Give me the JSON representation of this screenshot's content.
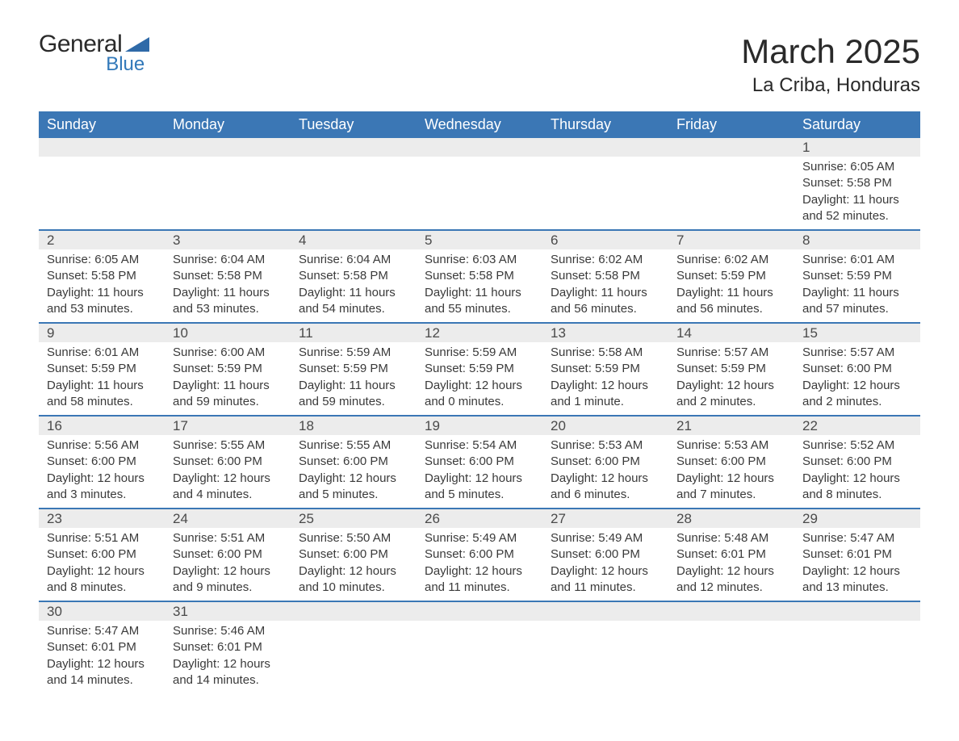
{
  "logo": {
    "word1": "General",
    "word2": "Blue",
    "shape_color": "#2f6aa8"
  },
  "title": {
    "month": "March 2025",
    "location": "La Criba, Honduras"
  },
  "colors": {
    "header_bg": "#3b77b5",
    "header_text": "#ffffff",
    "daynum_bg": "#ececec",
    "row_divider": "#3b77b5",
    "body_text": "#3a3a3a"
  },
  "weekdays": [
    "Sunday",
    "Monday",
    "Tuesday",
    "Wednesday",
    "Thursday",
    "Friday",
    "Saturday"
  ],
  "weeks": [
    {
      "days": [
        {
          "num": "",
          "lines": []
        },
        {
          "num": "",
          "lines": []
        },
        {
          "num": "",
          "lines": []
        },
        {
          "num": "",
          "lines": []
        },
        {
          "num": "",
          "lines": []
        },
        {
          "num": "",
          "lines": []
        },
        {
          "num": "1",
          "lines": [
            "Sunrise: 6:05 AM",
            "Sunset: 5:58 PM",
            "Daylight: 11 hours and 52 minutes."
          ]
        }
      ]
    },
    {
      "days": [
        {
          "num": "2",
          "lines": [
            "Sunrise: 6:05 AM",
            "Sunset: 5:58 PM",
            "Daylight: 11 hours and 53 minutes."
          ]
        },
        {
          "num": "3",
          "lines": [
            "Sunrise: 6:04 AM",
            "Sunset: 5:58 PM",
            "Daylight: 11 hours and 53 minutes."
          ]
        },
        {
          "num": "4",
          "lines": [
            "Sunrise: 6:04 AM",
            "Sunset: 5:58 PM",
            "Daylight: 11 hours and 54 minutes."
          ]
        },
        {
          "num": "5",
          "lines": [
            "Sunrise: 6:03 AM",
            "Sunset: 5:58 PM",
            "Daylight: 11 hours and 55 minutes."
          ]
        },
        {
          "num": "6",
          "lines": [
            "Sunrise: 6:02 AM",
            "Sunset: 5:58 PM",
            "Daylight: 11 hours and 56 minutes."
          ]
        },
        {
          "num": "7",
          "lines": [
            "Sunrise: 6:02 AM",
            "Sunset: 5:59 PM",
            "Daylight: 11 hours and 56 minutes."
          ]
        },
        {
          "num": "8",
          "lines": [
            "Sunrise: 6:01 AM",
            "Sunset: 5:59 PM",
            "Daylight: 11 hours and 57 minutes."
          ]
        }
      ]
    },
    {
      "days": [
        {
          "num": "9",
          "lines": [
            "Sunrise: 6:01 AM",
            "Sunset: 5:59 PM",
            "Daylight: 11 hours and 58 minutes."
          ]
        },
        {
          "num": "10",
          "lines": [
            "Sunrise: 6:00 AM",
            "Sunset: 5:59 PM",
            "Daylight: 11 hours and 59 minutes."
          ]
        },
        {
          "num": "11",
          "lines": [
            "Sunrise: 5:59 AM",
            "Sunset: 5:59 PM",
            "Daylight: 11 hours and 59 minutes."
          ]
        },
        {
          "num": "12",
          "lines": [
            "Sunrise: 5:59 AM",
            "Sunset: 5:59 PM",
            "Daylight: 12 hours and 0 minutes."
          ]
        },
        {
          "num": "13",
          "lines": [
            "Sunrise: 5:58 AM",
            "Sunset: 5:59 PM",
            "Daylight: 12 hours and 1 minute."
          ]
        },
        {
          "num": "14",
          "lines": [
            "Sunrise: 5:57 AM",
            "Sunset: 5:59 PM",
            "Daylight: 12 hours and 2 minutes."
          ]
        },
        {
          "num": "15",
          "lines": [
            "Sunrise: 5:57 AM",
            "Sunset: 6:00 PM",
            "Daylight: 12 hours and 2 minutes."
          ]
        }
      ]
    },
    {
      "days": [
        {
          "num": "16",
          "lines": [
            "Sunrise: 5:56 AM",
            "Sunset: 6:00 PM",
            "Daylight: 12 hours and 3 minutes."
          ]
        },
        {
          "num": "17",
          "lines": [
            "Sunrise: 5:55 AM",
            "Sunset: 6:00 PM",
            "Daylight: 12 hours and 4 minutes."
          ]
        },
        {
          "num": "18",
          "lines": [
            "Sunrise: 5:55 AM",
            "Sunset: 6:00 PM",
            "Daylight: 12 hours and 5 minutes."
          ]
        },
        {
          "num": "19",
          "lines": [
            "Sunrise: 5:54 AM",
            "Sunset: 6:00 PM",
            "Daylight: 12 hours and 5 minutes."
          ]
        },
        {
          "num": "20",
          "lines": [
            "Sunrise: 5:53 AM",
            "Sunset: 6:00 PM",
            "Daylight: 12 hours and 6 minutes."
          ]
        },
        {
          "num": "21",
          "lines": [
            "Sunrise: 5:53 AM",
            "Sunset: 6:00 PM",
            "Daylight: 12 hours and 7 minutes."
          ]
        },
        {
          "num": "22",
          "lines": [
            "Sunrise: 5:52 AM",
            "Sunset: 6:00 PM",
            "Daylight: 12 hours and 8 minutes."
          ]
        }
      ]
    },
    {
      "days": [
        {
          "num": "23",
          "lines": [
            "Sunrise: 5:51 AM",
            "Sunset: 6:00 PM",
            "Daylight: 12 hours and 8 minutes."
          ]
        },
        {
          "num": "24",
          "lines": [
            "Sunrise: 5:51 AM",
            "Sunset: 6:00 PM",
            "Daylight: 12 hours and 9 minutes."
          ]
        },
        {
          "num": "25",
          "lines": [
            "Sunrise: 5:50 AM",
            "Sunset: 6:00 PM",
            "Daylight: 12 hours and 10 minutes."
          ]
        },
        {
          "num": "26",
          "lines": [
            "Sunrise: 5:49 AM",
            "Sunset: 6:00 PM",
            "Daylight: 12 hours and 11 minutes."
          ]
        },
        {
          "num": "27",
          "lines": [
            "Sunrise: 5:49 AM",
            "Sunset: 6:00 PM",
            "Daylight: 12 hours and 11 minutes."
          ]
        },
        {
          "num": "28",
          "lines": [
            "Sunrise: 5:48 AM",
            "Sunset: 6:01 PM",
            "Daylight: 12 hours and 12 minutes."
          ]
        },
        {
          "num": "29",
          "lines": [
            "Sunrise: 5:47 AM",
            "Sunset: 6:01 PM",
            "Daylight: 12 hours and 13 minutes."
          ]
        }
      ]
    },
    {
      "days": [
        {
          "num": "30",
          "lines": [
            "Sunrise: 5:47 AM",
            "Sunset: 6:01 PM",
            "Daylight: 12 hours and 14 minutes."
          ]
        },
        {
          "num": "31",
          "lines": [
            "Sunrise: 5:46 AM",
            "Sunset: 6:01 PM",
            "Daylight: 12 hours and 14 minutes."
          ]
        },
        {
          "num": "",
          "lines": []
        },
        {
          "num": "",
          "lines": []
        },
        {
          "num": "",
          "lines": []
        },
        {
          "num": "",
          "lines": []
        },
        {
          "num": "",
          "lines": []
        }
      ]
    }
  ]
}
